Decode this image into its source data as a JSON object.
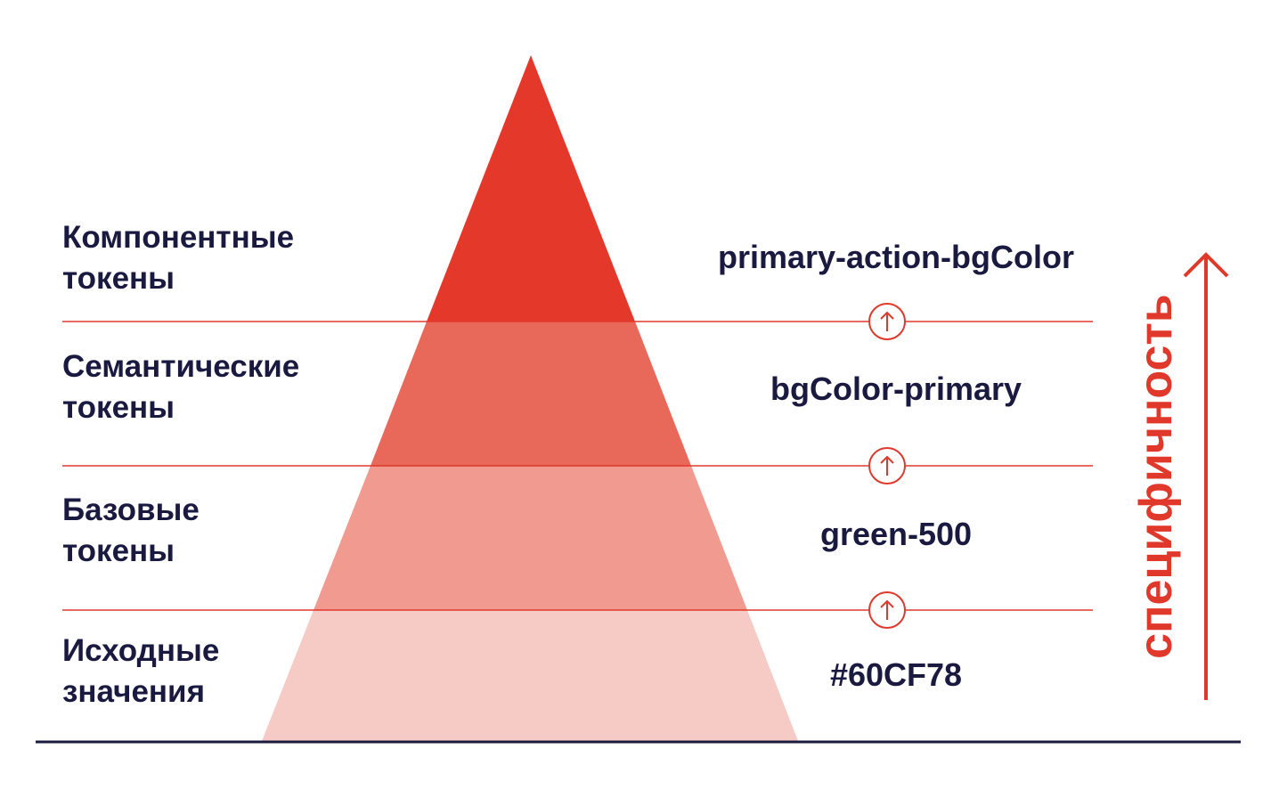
{
  "colors": {
    "accent": "#e0382b",
    "text": "#1a1a40",
    "baseline": "#1a1a40",
    "tier_fills": [
      "#e3382a",
      "#e8685a",
      "#f19a90",
      "#f6cbc6"
    ]
  },
  "levels": [
    {
      "label_line1": "Компонентные",
      "label_line2": "токены",
      "token": "primary-action-bgColor"
    },
    {
      "label_line1": "Семантические",
      "label_line2": "токены",
      "token": "bgColor-primary"
    },
    {
      "label_line1": "Базовые",
      "label_line2": "токены",
      "token": "green-500"
    },
    {
      "label_line1": "Исходные",
      "label_line2": "значения",
      "token": "#60CF78"
    }
  ],
  "axis": {
    "label": "специфичность",
    "direction": "up"
  },
  "icons": [
    "arrow-up-circle-icon",
    "arrow-up-circle-icon",
    "arrow-up-circle-icon"
  ]
}
